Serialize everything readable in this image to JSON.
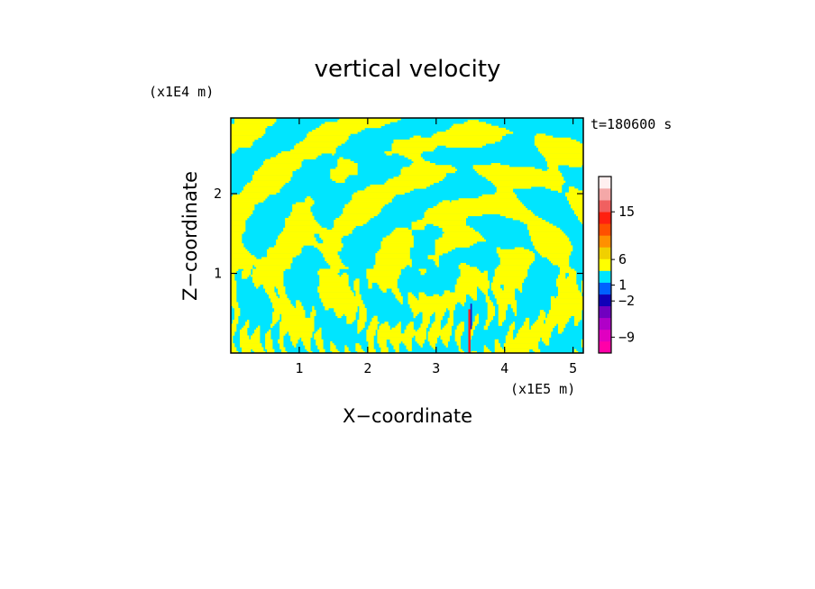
{
  "chart_data": {
    "type": "heatmap",
    "title": "vertical velocity",
    "xlabel": "X−coordinate",
    "ylabel": "Z−coordinate",
    "x_unit_label": "(x1E5 m)",
    "y_unit_label": "(x1E4 m)",
    "time_label": "t=180600 s",
    "xlim": [
      0,
      5.15
    ],
    "ylim": [
      0,
      2.95
    ],
    "x_ticks": [
      1,
      2,
      3,
      4,
      5
    ],
    "x_tick_labels": [
      "1",
      "2",
      "3",
      "4",
      "5"
    ],
    "y_ticks": [
      1,
      2
    ],
    "y_tick_labels": [
      "1",
      "2"
    ],
    "grid": false,
    "field_colors": {
      "positive": "#ffff00",
      "negative": "#00e5ff",
      "updraft_core": "#ff2020",
      "downdraft_core": "#2020c0"
    },
    "colorbar": {
      "levels_bottom_to_top": [
        {
          "color": "#ff00a8"
        },
        {
          "color": "#e000c0"
        },
        {
          "color": "#b000c8"
        },
        {
          "color": "#7000c0"
        },
        {
          "color": "#1000b8"
        },
        {
          "color": "#0060ff"
        },
        {
          "color": "#00e5ff"
        },
        {
          "color": "#ffff00"
        },
        {
          "color": "#f0d000"
        },
        {
          "color": "#ff9000"
        },
        {
          "color": "#ff5000"
        },
        {
          "color": "#ff2010"
        },
        {
          "color": "#f06060"
        },
        {
          "color": "#f4a8a8"
        },
        {
          "color": "#fff0f0"
        }
      ],
      "labels": [
        {
          "text": "15",
          "pos": 0.8
        },
        {
          "text": "6",
          "pos": 0.53
        },
        {
          "text": "1",
          "pos": 0.385
        },
        {
          "text": "−2",
          "pos": 0.295
        },
        {
          "text": "−9",
          "pos": 0.09
        }
      ]
    }
  }
}
